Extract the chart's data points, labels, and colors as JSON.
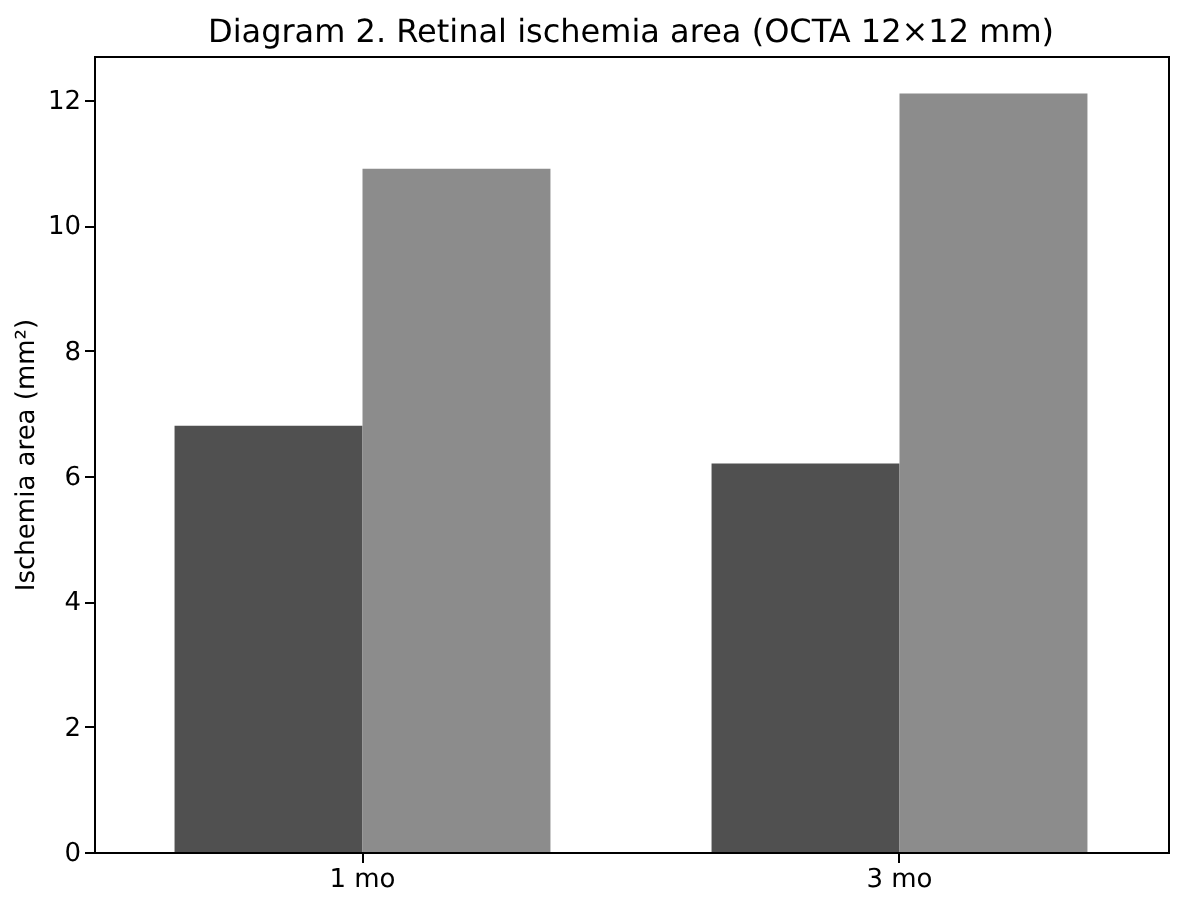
{
  "chart_data": {
    "type": "bar",
    "title": "Diagram 2. Retinal ischemia area (OCTA 12×12 mm)",
    "ylabel": "Ischemia area (mm²)",
    "categories": [
      "1 mo",
      "3 mo"
    ],
    "series": [
      {
        "color": "#505050",
        "values": [
          6.8,
          6.2
        ]
      },
      {
        "color": "#8c8c8c",
        "values": [
          10.9,
          12.1
        ]
      }
    ],
    "ylim": [
      0,
      12.7
    ],
    "yticks": [
      0,
      2,
      4,
      6,
      8,
      10,
      12
    ],
    "grid": false
  }
}
